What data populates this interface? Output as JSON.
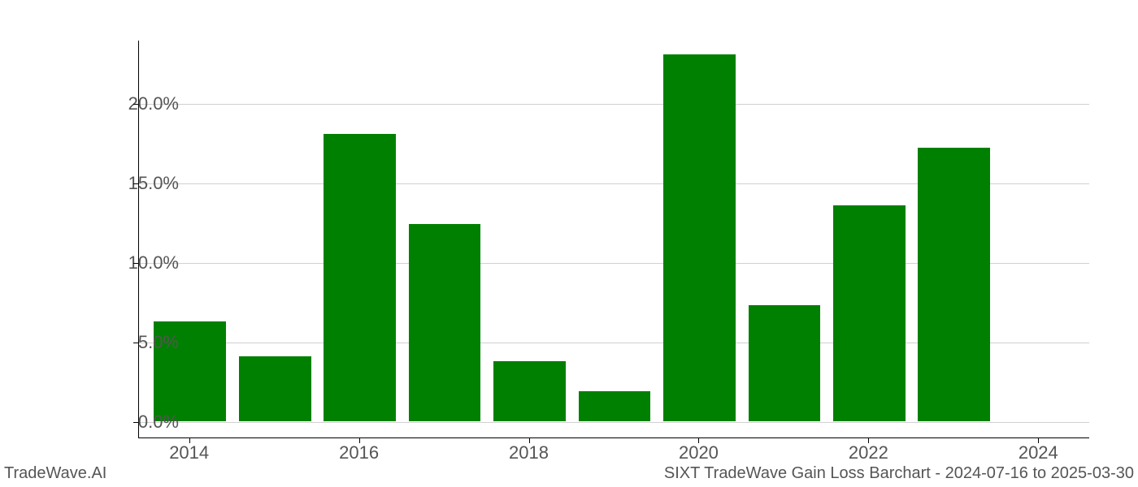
{
  "chart": {
    "type": "bar",
    "years": [
      2014,
      2015,
      2016,
      2017,
      2018,
      2019,
      2020,
      2021,
      2022,
      2023,
      2024
    ],
    "values": [
      6.3,
      4.1,
      18.1,
      12.4,
      3.8,
      1.9,
      23.1,
      7.3,
      13.6,
      17.2,
      0.0
    ],
    "bar_color": "#008000",
    "background_color": "#ffffff",
    "grid_color": "#d0d0d0",
    "axis_color": "#000000",
    "tick_label_color": "#555555",
    "x_tick_labels": [
      "2014",
      "2016",
      "2018",
      "2020",
      "2022",
      "2024"
    ],
    "x_tick_years": [
      2014,
      2016,
      2018,
      2020,
      2022,
      2024
    ],
    "y_ticks": [
      0.0,
      5.0,
      10.0,
      15.0,
      20.0
    ],
    "y_tick_labels": [
      "0.0%",
      "5.0%",
      "10.0%",
      "15.0%",
      "20.0%"
    ],
    "ylim": [
      -1.0,
      24.0
    ],
    "xlim": [
      2013.4,
      2024.6
    ],
    "bar_width": 0.85,
    "label_fontsize": 22,
    "footer_fontsize": 20
  },
  "footer": {
    "left": "TradeWave.AI",
    "right": "SIXT TradeWave Gain Loss Barchart - 2024-07-16 to 2025-03-30"
  }
}
